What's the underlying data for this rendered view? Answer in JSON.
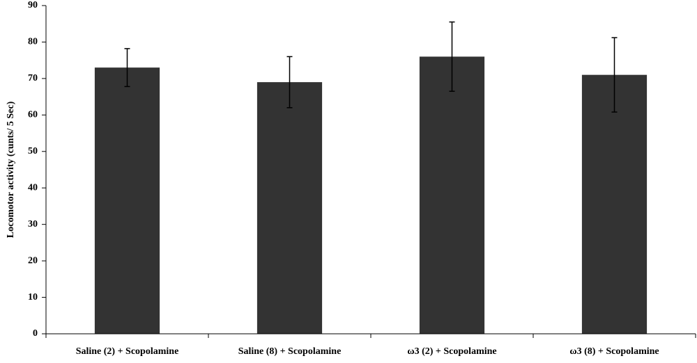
{
  "chart_data": {
    "type": "bar",
    "y_label": "Locomotor activity (cunts/ 5 Sec)",
    "categories": [
      "Saline (2) + Scopolamine",
      "Saline (8) + Scopolamine",
      "ω3 (2) + Scopolamine",
      "ω3 (8) + Scopolamine"
    ],
    "values": [
      73,
      69,
      76,
      71
    ],
    "errors": [
      5.2,
      7,
      9.5,
      10.2
    ],
    "color": "#333333",
    "ylim": [
      0,
      90
    ],
    "yticks": [
      0,
      10,
      20,
      30,
      40,
      50,
      60,
      70,
      80,
      90
    ],
    "grid": false
  }
}
